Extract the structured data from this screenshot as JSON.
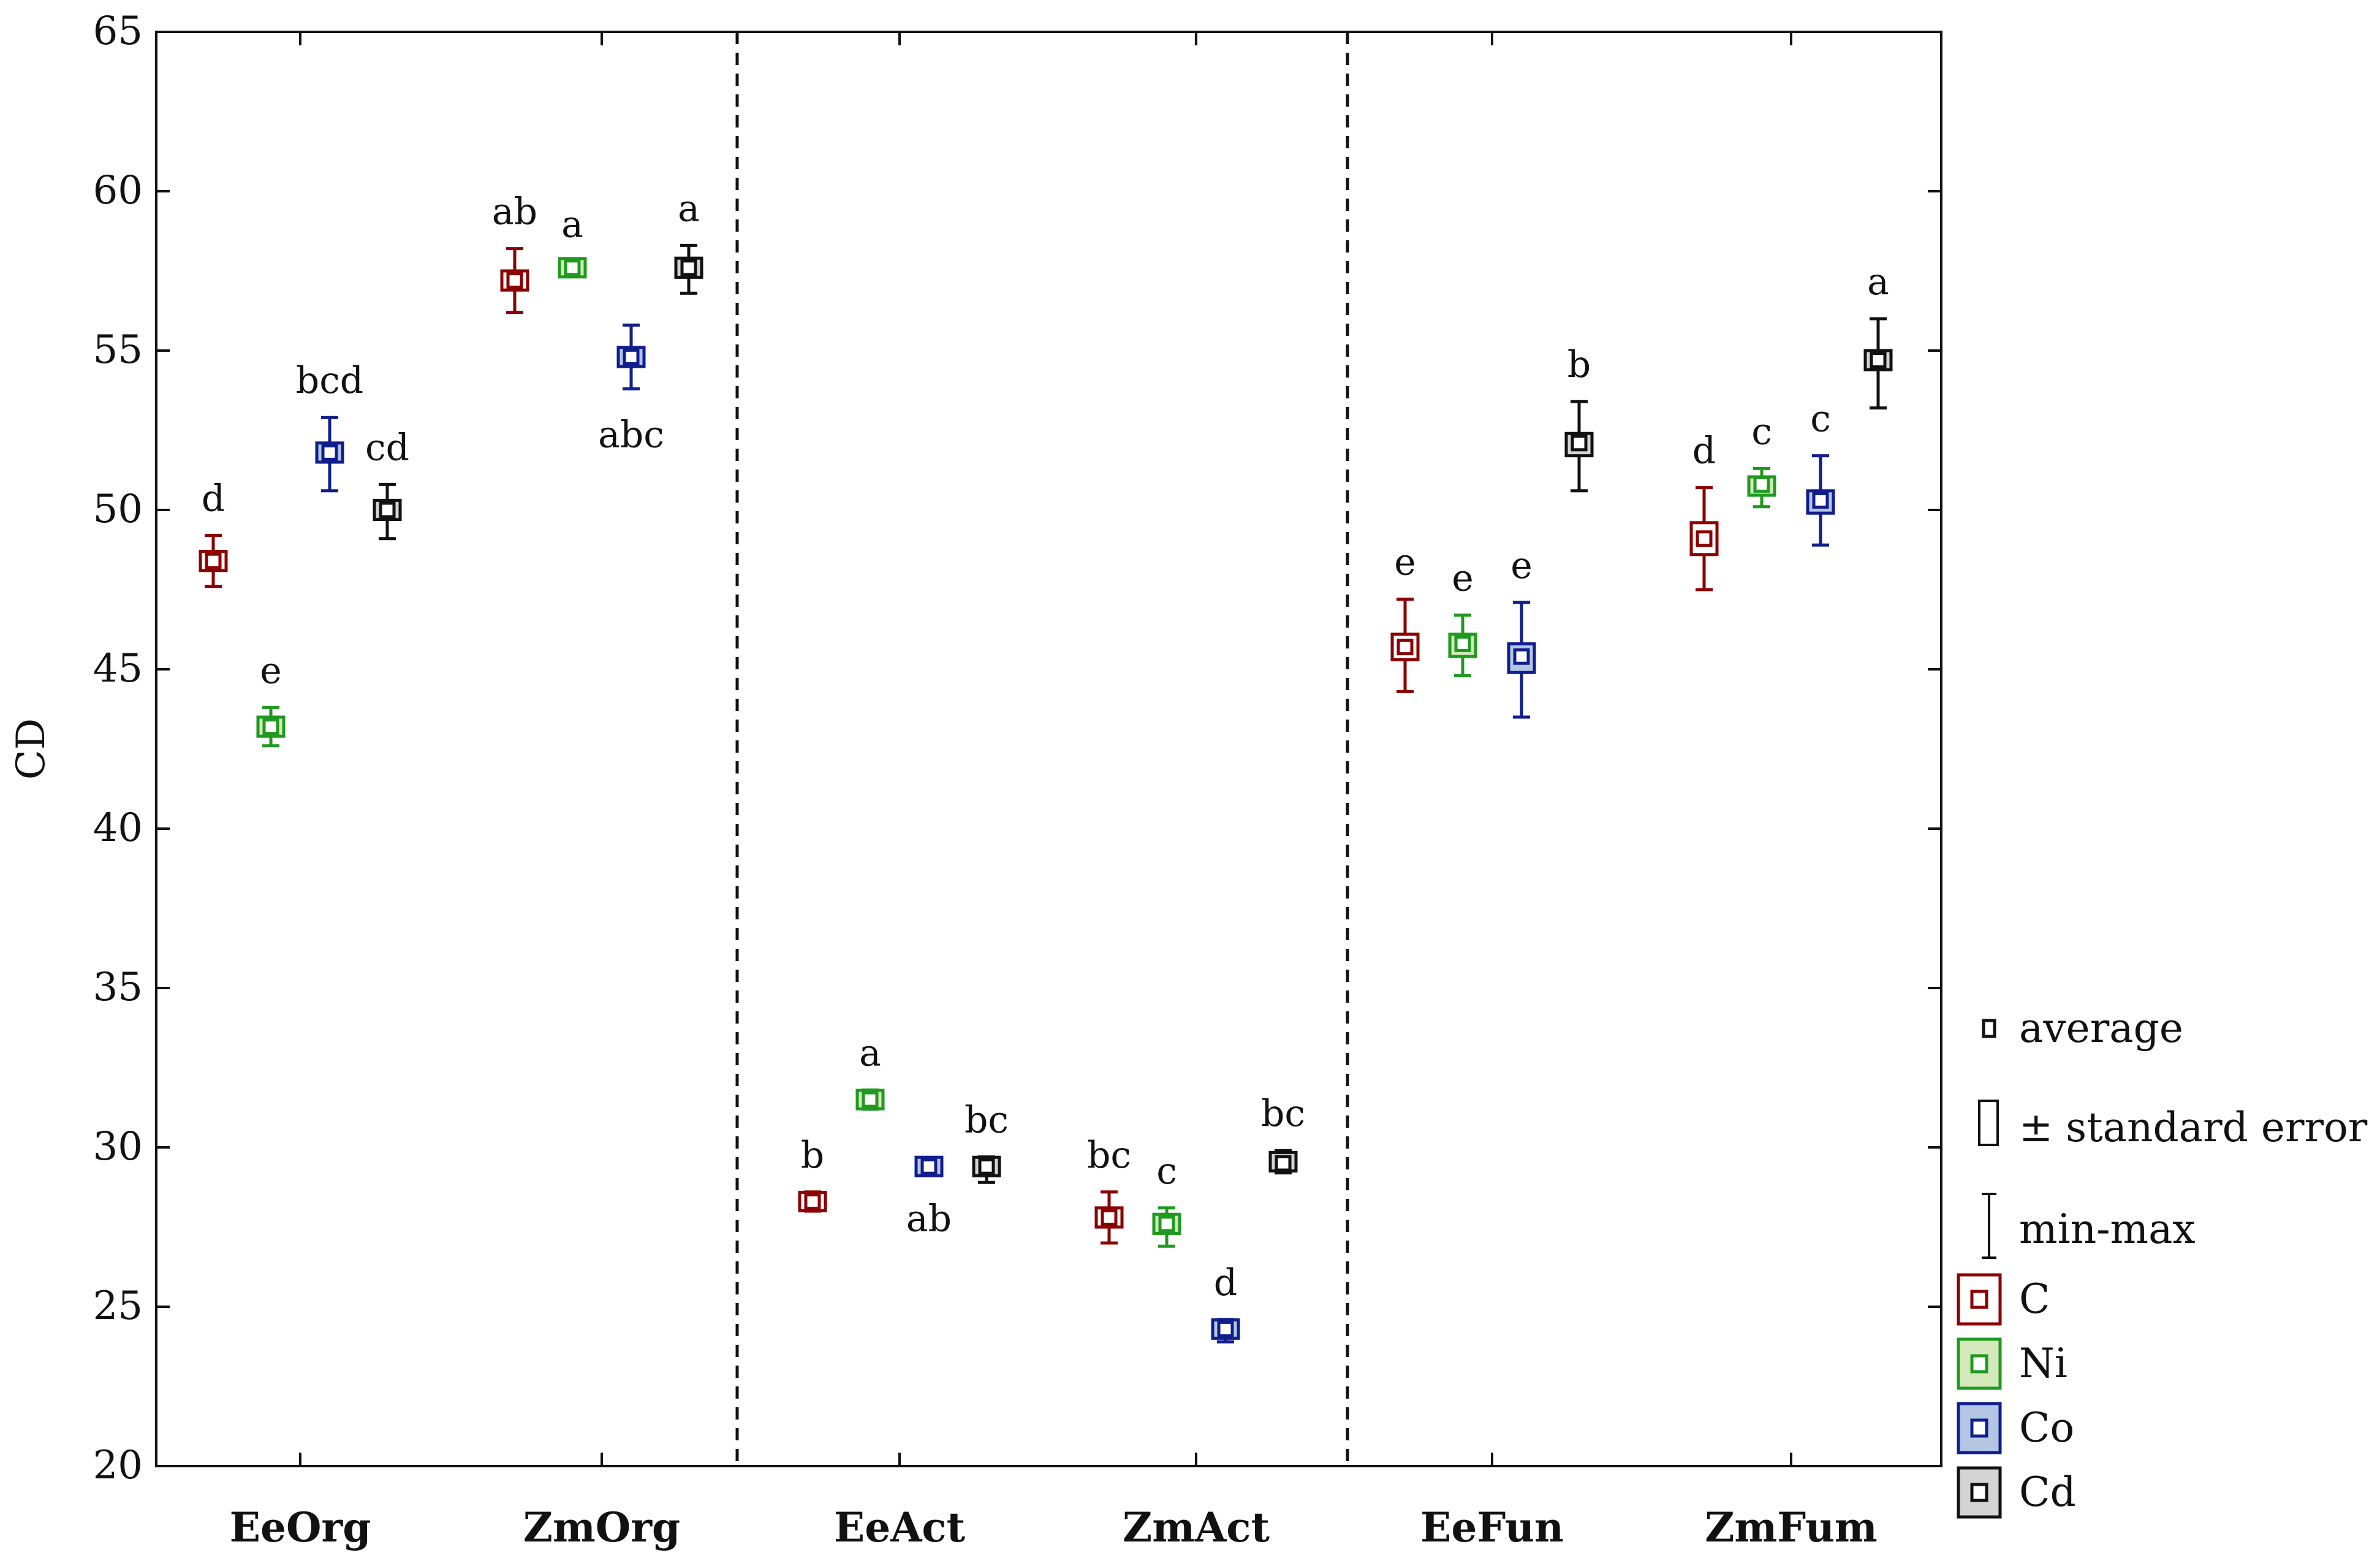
{
  "chart_data": {
    "type": "box",
    "ylabel": "CD",
    "ylim": [
      20,
      65
    ],
    "yticks": [
      "20",
      "25",
      "30",
      "35",
      "40",
      "45",
      "50",
      "55",
      "60",
      "65"
    ],
    "categories": [
      "EeOrg",
      "ZmOrg",
      "EeAct",
      "ZmAct",
      "EeFun",
      "ZmFum"
    ],
    "panel_dividers_after": [
      "ZmOrg",
      "ZmAct"
    ],
    "series": [
      {
        "name": "C",
        "color": "#8b0000",
        "fill": "#ffffff",
        "mean": [
          48.4,
          57.2,
          28.3,
          27.8,
          45.7,
          49.1
        ],
        "se_low": [
          48.1,
          56.9,
          28.1,
          27.5,
          45.3,
          48.6
        ],
        "se_high": [
          48.7,
          57.5,
          28.5,
          28.1,
          46.1,
          49.6
        ],
        "min": [
          47.6,
          56.2,
          28.0,
          27.0,
          44.3,
          47.5
        ],
        "max": [
          49.2,
          58.2,
          28.6,
          28.6,
          47.2,
          50.7
        ],
        "letters": [
          "d",
          "ab",
          "b",
          "bc",
          "e",
          "d"
        ]
      },
      {
        "name": "Ni",
        "color": "#1f9a1f",
        "fill": "#d4e8bc",
        "mean": [
          43.2,
          57.6,
          31.5,
          27.6,
          45.8,
          50.8
        ],
        "se_low": [
          42.9,
          57.4,
          31.3,
          27.3,
          45.4,
          50.5
        ],
        "se_high": [
          43.5,
          57.8,
          31.7,
          27.9,
          46.1,
          51.0
        ],
        "min": [
          42.6,
          57.5,
          31.2,
          26.9,
          44.8,
          50.1
        ],
        "max": [
          43.8,
          57.8,
          31.8,
          28.1,
          46.7,
          51.3
        ],
        "letters": [
          "e",
          "a",
          "a",
          "c",
          "e",
          "c"
        ]
      },
      {
        "name": "Co",
        "color": "#101d8c",
        "fill": "#b4c6e4",
        "mean": [
          51.8,
          54.8,
          29.4,
          24.3,
          45.4,
          50.3
        ],
        "se_low": [
          51.5,
          54.5,
          29.2,
          24.1,
          44.9,
          49.9
        ],
        "se_high": [
          52.1,
          55.1,
          29.6,
          24.5,
          45.8,
          50.6
        ],
        "min": [
          50.6,
          53.8,
          29.2,
          23.9,
          43.5,
          48.9
        ],
        "max": [
          52.9,
          55.8,
          29.6,
          24.6,
          47.1,
          51.7
        ],
        "letters": [
          "bcd",
          "abc",
          "ab",
          "d",
          "e",
          "c"
        ]
      },
      {
        "name": "Cd",
        "color": "#111111",
        "fill": "#d4d4d4",
        "mean": [
          50.0,
          57.6,
          29.4,
          29.5,
          52.1,
          54.7
        ],
        "se_low": [
          49.7,
          57.3,
          29.2,
          29.3,
          51.7,
          54.4
        ],
        "se_high": [
          50.3,
          57.9,
          29.6,
          29.8,
          52.4,
          55.0
        ],
        "min": [
          49.1,
          56.8,
          28.9,
          29.2,
          50.6,
          53.2
        ],
        "max": [
          50.8,
          58.3,
          29.7,
          29.9,
          53.4,
          56.0
        ],
        "letters": [
          "cd",
          "a",
          "bc",
          "bc",
          "b",
          "a"
        ]
      }
    ],
    "legend": {
      "position": "right",
      "stats": [
        "average",
        "± standard error",
        "min-max"
      ],
      "series": [
        "C",
        "Ni",
        "Co",
        "Cd"
      ]
    }
  }
}
